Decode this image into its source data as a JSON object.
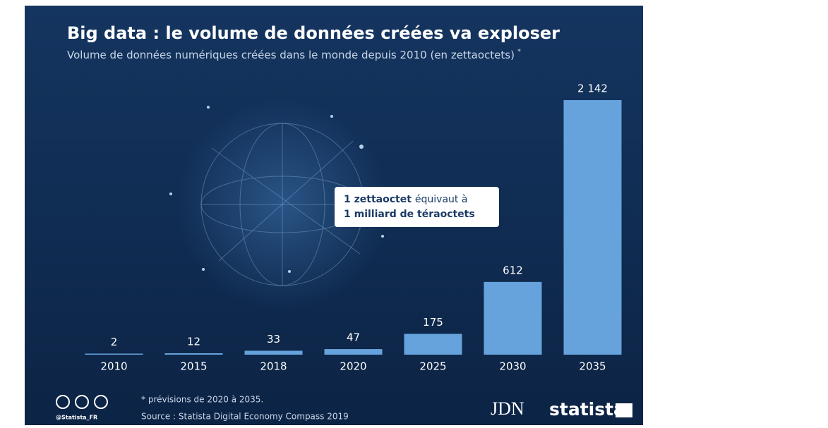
{
  "chart_data": {
    "type": "bar",
    "title": "Big data : le volume de données créées va exploser",
    "subtitle": "Volume de données numériques créées dans le monde depuis 2010 (en zettaoctets)",
    "subtitle_note": "*",
    "categories": [
      "2010",
      "2015",
      "2018",
      "2020",
      "2025",
      "2030",
      "2035"
    ],
    "values": [
      2,
      12,
      33,
      47,
      175,
      612,
      2142
    ],
    "value_labels": [
      "2",
      "12",
      "33",
      "47",
      "175",
      "612",
      "2 142"
    ],
    "color": "#66a3dc",
    "callout": {
      "bold1": "1 zettaoctet",
      "text1": "équivaut à",
      "bold2": "1 milliard de téraoctets"
    },
    "footnote": "* prévisions de 2020 à 2035.",
    "source": "Source : Statista Digital Economy Compass 2019",
    "credit": "@Statista_FR",
    "logo1": "JDN",
    "logo2": "statista"
  }
}
